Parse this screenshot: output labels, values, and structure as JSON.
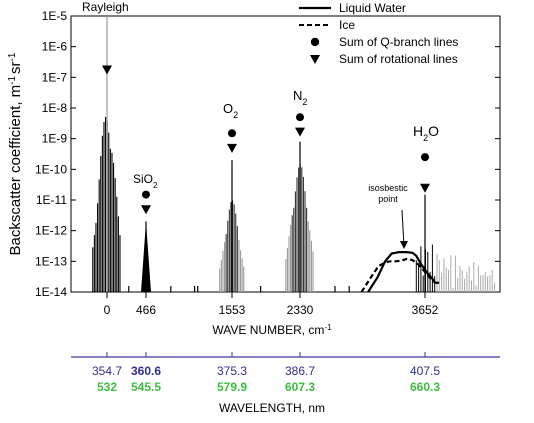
{
  "chart_data": {
    "type": "line",
    "y_scale": "log",
    "ylim": [
      1e-14,
      1e-05
    ],
    "ylabel": "Backscatter coefficient, m",
    "ylabel_sup": "-1",
    "ylabel_unit": "sr",
    "ylabel_sup2": "-1",
    "yticks": [
      "1E-5",
      "1E-6",
      "1E-7",
      "1E-8",
      "1E-9",
      "1E-10",
      "1E-11",
      "1E-12",
      "1E-13",
      "1E-14"
    ],
    "xlabel": "WAVE NUMBER, cm",
    "xlabel_sup": "-1",
    "xticks": [
      "0",
      "466",
      "1553",
      "2330",
      "3652"
    ],
    "wavelength_label": "WAVELENGTH, nm",
    "wavelengths_blue": [
      "354.7",
      "360.6",
      "375.3",
      "386.7",
      "407.5"
    ],
    "wavelengths_green": [
      "532",
      "545.5",
      "579.9",
      "607.3",
      "660.3"
    ],
    "grid": false,
    "legend_position": "top-right",
    "legend": [
      {
        "name": "Liquid Water",
        "marker": "solid-line"
      },
      {
        "name": "Ice",
        "marker": "dashed-line"
      },
      {
        "name": "Sum of Q-branch lines",
        "marker": "circle"
      },
      {
        "name": "Sum of rotational lines",
        "marker": "triangle-down"
      }
    ],
    "annotations": [
      {
        "text": "Rayleigh",
        "x": 0
      },
      {
        "text": "SiO",
        "sub": "2",
        "x": 466
      },
      {
        "text": "O",
        "sub": "2",
        "x": 1553
      },
      {
        "text": "N",
        "sub": "2",
        "x": 2330
      },
      {
        "text": "H",
        "sub": "2",
        "text2": "O",
        "x": 3652
      },
      {
        "text": "isosbestic",
        "text2": "point",
        "x": 3480
      }
    ],
    "bands": [
      {
        "name": "Rayleigh",
        "center": 0,
        "halfwidth": 170,
        "peak": 8e-09,
        "line_top": 1e-05,
        "q_branch": null,
        "rotational": 1.8e-07
      },
      {
        "name": "SiO2",
        "center": 466,
        "halfwidth": 30,
        "peak": 2e-12,
        "line_top": 2e-12,
        "q_branch": 1.5e-11,
        "rotational": 5e-12
      },
      {
        "name": "O2",
        "center": 1553,
        "halfwidth": 140,
        "peak": 1e-11,
        "line_top": 2e-10,
        "q_branch": 1.5e-09,
        "rotational": 5e-10
      },
      {
        "name": "N2",
        "center": 2330,
        "halfwidth": 150,
        "peak": 1.5e-10,
        "line_top": 8e-10,
        "q_branch": 5e-09,
        "rotational": 1.7e-09
      },
      {
        "name": "H2O",
        "center": 3652,
        "halfwidth": 0,
        "peak": 1.5e-11,
        "line_top": 1.5e-11,
        "q_branch": 2.5e-10,
        "rotational": 2.5e-11
      }
    ],
    "series": [
      {
        "name": "Liquid Water",
        "style": "solid",
        "x": [
          3050,
          3150,
          3230,
          3300,
          3380,
          3450,
          3520,
          3560,
          3600,
          3640,
          3680,
          3720,
          3760,
          3800
        ],
        "y": [
          1e-14,
          3e-14,
          1e-13,
          1.8e-13,
          2e-13,
          2e-13,
          1.9e-13,
          1.5e-13,
          9e-14,
          6e-14,
          4e-14,
          3e-14,
          2e-14,
          2e-14
        ]
      },
      {
        "name": "Ice",
        "style": "dashed",
        "x": [
          2980,
          3080,
          3160,
          3230,
          3280,
          3340,
          3400,
          3460,
          3520,
          3580,
          3640,
          3700,
          3760
        ],
        "y": [
          1e-14,
          3e-14,
          7e-14,
          9e-14,
          1e-13,
          1e-13,
          1.05e-13,
          1.2e-13,
          1.1e-13,
          8e-14,
          5e-14,
          3e-14,
          2e-14
        ]
      }
    ]
  }
}
